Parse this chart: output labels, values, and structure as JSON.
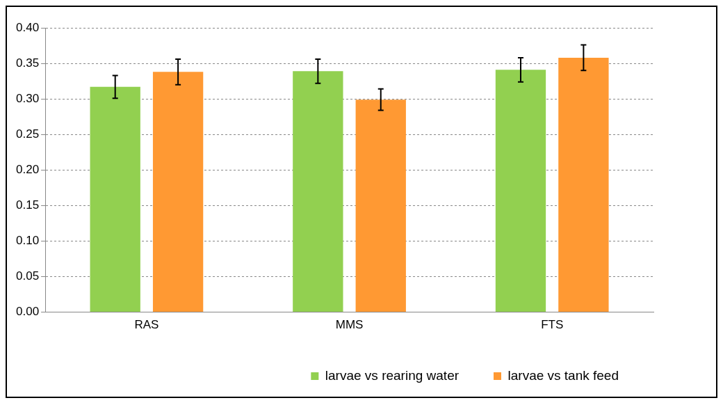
{
  "chart_data": {
    "type": "bar",
    "categories": [
      "RAS",
      "MMS",
      "FTS"
    ],
    "series": [
      {
        "name": "larvae vs rearing water",
        "color": "#92d050",
        "values": [
          0.317,
          0.339,
          0.341
        ],
        "errors": [
          0.016,
          0.017,
          0.017
        ]
      },
      {
        "name": "larvae vs tank feed",
        "color": "#ff9933",
        "values": [
          0.338,
          0.299,
          0.358
        ],
        "errors": [
          0.018,
          0.015,
          0.018
        ]
      }
    ],
    "ylim": [
      0,
      0.4
    ],
    "yticks": [
      {
        "value": 0,
        "label": "0.00"
      },
      {
        "value": 0.05,
        "label": "0.05"
      },
      {
        "value": 0.1,
        "label": "0.10"
      },
      {
        "value": 0.15,
        "label": "0.15"
      },
      {
        "value": 0.2,
        "label": "0.20"
      },
      {
        "value": 0.25,
        "label": "0.25"
      },
      {
        "value": 0.3,
        "label": "0.30"
      },
      {
        "value": 0.35,
        "label": "0.35"
      },
      {
        "value": 0.4,
        "label": "0.40"
      }
    ],
    "grid": "y",
    "legend": "bottom"
  }
}
